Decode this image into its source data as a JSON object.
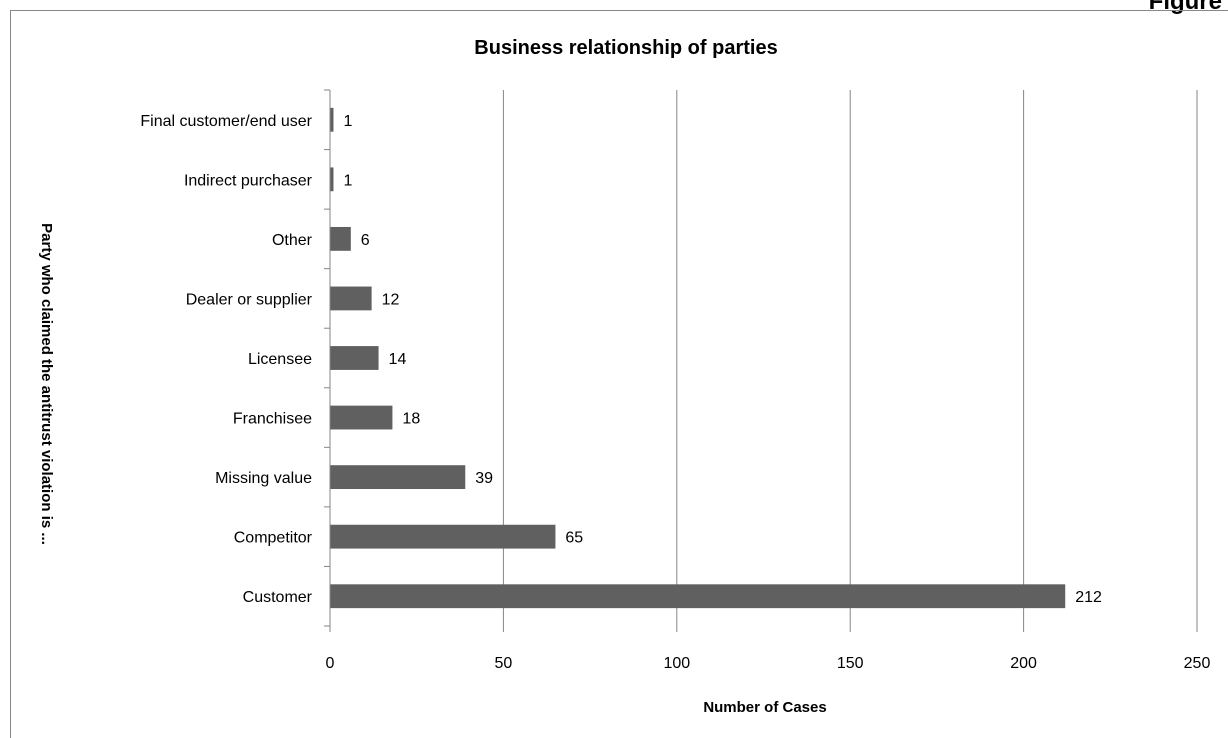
{
  "figure_label": "Figure",
  "chart_data": {
    "type": "bar",
    "orientation": "horizontal",
    "title": "Business relationship of parties",
    "xlabel": "Number of Cases",
    "ylabel": "Party who claimed the antitrust violation is ...",
    "categories": [
      "Customer",
      "Competitor",
      "Missing value",
      "Franchisee",
      "Licensee",
      "Dealer or supplier",
      "Other",
      "Indirect purchaser",
      "Final customer/end user"
    ],
    "values": [
      212,
      65,
      39,
      18,
      14,
      12,
      6,
      1,
      1
    ],
    "data_labels": [
      "212",
      "65",
      "39",
      "18",
      "14",
      "12",
      "6",
      "1",
      "1"
    ],
    "xlim": [
      0,
      250
    ],
    "xticks": [
      0,
      50,
      100,
      150,
      200,
      250
    ],
    "xtick_labels": [
      "0",
      "50",
      "100",
      "150",
      "200",
      "250"
    ],
    "grid": "vertical major",
    "legend": "none",
    "bar_color": "#606060",
    "grid_color": "#868686"
  }
}
